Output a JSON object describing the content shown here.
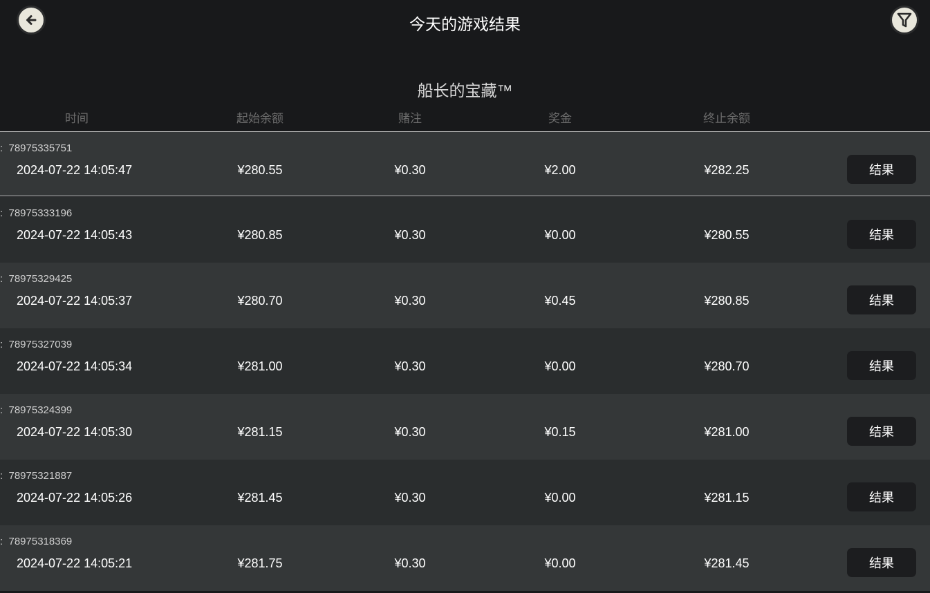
{
  "header": {
    "title": "今天的游戏结果",
    "back_icon": "arrow-left-icon",
    "filter_icon": "filter-icon"
  },
  "game_name": "船长的宝藏™",
  "columns": [
    "时间",
    "起始余额",
    "赌注",
    "奖金",
    "终止余额"
  ],
  "colors": {
    "background": "#18191b",
    "row_light": "#343738",
    "row_dark": "#2a2d2e",
    "button": "#1c1d1f"
  },
  "rows": [
    {
      "id": ":  78975335751",
      "time": "2024-07-22  14:05:47",
      "start": "¥280.55",
      "bet": "¥0.30",
      "win": "¥2.00",
      "end": "¥282.25",
      "button": "结果"
    },
    {
      "id": ":  78975333196",
      "time": "2024-07-22  14:05:43",
      "start": "¥280.85",
      "bet": "¥0.30",
      "win": "¥0.00",
      "end": "¥280.55",
      "button": "结果"
    },
    {
      "id": ":  78975329425",
      "time": "2024-07-22  14:05:37",
      "start": "¥280.70",
      "bet": "¥0.30",
      "win": "¥0.45",
      "end": "¥280.85",
      "button": "结果"
    },
    {
      "id": ":  78975327039",
      "time": "2024-07-22  14:05:34",
      "start": "¥281.00",
      "bet": "¥0.30",
      "win": "¥0.00",
      "end": "¥280.70",
      "button": "结果"
    },
    {
      "id": ":  78975324399",
      "time": "2024-07-22  14:05:30",
      "start": "¥281.15",
      "bet": "¥0.30",
      "win": "¥0.15",
      "end": "¥281.00",
      "button": "结果"
    },
    {
      "id": ":  78975321887",
      "time": "2024-07-22  14:05:26",
      "start": "¥281.45",
      "bet": "¥0.30",
      "win": "¥0.00",
      "end": "¥281.15",
      "button": "结果"
    },
    {
      "id": ":  78975318369",
      "time": "2024-07-22  14:05:21",
      "start": "¥281.75",
      "bet": "¥0.30",
      "win": "¥0.00",
      "end": "¥281.45",
      "button": "结果"
    }
  ]
}
